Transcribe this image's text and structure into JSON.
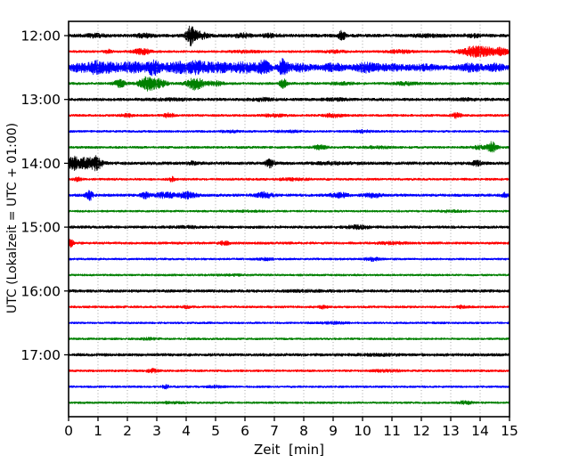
{
  "figure": {
    "background": "#ffffff"
  },
  "chart_data": {
    "type": "line",
    "subtype": "seismogram_drum_plot",
    "title": "",
    "xlabel": "Zeit  [min]",
    "ylabel": "UTC (Lokalzeit = UTC + 01:00)",
    "xlim": [
      0,
      15
    ],
    "x_ticks": [
      "0",
      "1",
      "2",
      "3",
      "4",
      "5",
      "6",
      "7",
      "8",
      "9",
      "10",
      "11",
      "12",
      "13",
      "14",
      "15"
    ],
    "y_tick_labels": [
      "12:00",
      "13:00",
      "14:00",
      "15:00",
      "16:00",
      "17:00"
    ],
    "minutes_per_line": 15,
    "grid": "vertical dotted gridline at every minute",
    "legend": "none",
    "colors": {
      "black": "#000000",
      "red": "#ff0000",
      "blue": "#0000ff",
      "green": "#008000",
      "grid": "#9a9a9a",
      "frame": "#000000",
      "text": "#000000"
    },
    "event_format": "[t_minutes, sigma_minutes, amplitude_px]",
    "traces": [
      {
        "start_utc": "12:00",
        "color": "black",
        "base_amp": 2.1,
        "events": [
          [
            0.9,
            0.25,
            1.2
          ],
          [
            2.6,
            0.2,
            1.5
          ],
          [
            4.15,
            0.1,
            8
          ],
          [
            4.4,
            0.25,
            3.5
          ],
          [
            5.9,
            0.25,
            1.8
          ],
          [
            6.9,
            0.2,
            1.5
          ],
          [
            9.3,
            0.07,
            6
          ],
          [
            12.2,
            0.3,
            1.0
          ],
          [
            13.8,
            0.2,
            1.2
          ]
        ]
      },
      {
        "start_utc": "12:15",
        "color": "red",
        "base_amp": 1.6,
        "events": [
          [
            1.35,
            0.08,
            1.8
          ],
          [
            2.5,
            0.2,
            3
          ],
          [
            6.0,
            0.3,
            1
          ],
          [
            9.0,
            0.3,
            1
          ],
          [
            11.3,
            0.3,
            1.5
          ],
          [
            13.6,
            0.25,
            3
          ],
          [
            14.1,
            0.3,
            5
          ],
          [
            14.7,
            0.2,
            3
          ]
        ]
      },
      {
        "start_utc": "12:30",
        "color": "blue",
        "base_amp": 3.0,
        "events": [
          [
            0.35,
            0.2,
            3
          ],
          [
            0.9,
            0.2,
            5
          ],
          [
            1.4,
            0.3,
            3.5
          ],
          [
            2.2,
            0.3,
            4.5
          ],
          [
            2.9,
            0.15,
            6.5
          ],
          [
            3.6,
            0.3,
            3.5
          ],
          [
            4.35,
            0.4,
            5.5
          ],
          [
            5.2,
            0.25,
            3.5
          ],
          [
            6.0,
            0.3,
            4.5
          ],
          [
            6.65,
            0.15,
            6
          ],
          [
            7.3,
            0.1,
            9
          ],
          [
            7.9,
            0.25,
            3
          ],
          [
            9.0,
            0.25,
            3
          ],
          [
            10.15,
            0.25,
            4.5
          ],
          [
            11.0,
            0.3,
            2.2
          ],
          [
            12.1,
            0.3,
            1.8
          ],
          [
            13.7,
            0.25,
            3.2
          ],
          [
            14.5,
            0.2,
            2.8
          ]
        ]
      },
      {
        "start_utc": "12:45",
        "color": "green",
        "base_amp": 1.7,
        "events": [
          [
            1.75,
            0.15,
            3.5
          ],
          [
            2.7,
            0.2,
            7.5
          ],
          [
            3.15,
            0.15,
            3.5
          ],
          [
            4.3,
            0.2,
            6.5
          ],
          [
            5.0,
            0.2,
            2.2
          ],
          [
            7.3,
            0.08,
            5
          ],
          [
            9.3,
            0.3,
            1
          ],
          [
            11.5,
            0.3,
            1.2
          ]
        ]
      },
      {
        "start_utc": "13:00",
        "color": "black",
        "base_amp": 1.9,
        "events": [
          [
            3.5,
            0.4,
            0.8
          ],
          [
            6.6,
            0.3,
            1
          ],
          [
            9.1,
            0.3,
            0.8
          ],
          [
            13.5,
            0.3,
            0.8
          ]
        ]
      },
      {
        "start_utc": "13:15",
        "color": "red",
        "base_amp": 1.6,
        "events": [
          [
            2.0,
            0.15,
            1.4
          ],
          [
            3.4,
            0.12,
            2.2
          ],
          [
            7.0,
            0.3,
            1
          ],
          [
            9.0,
            0.2,
            1.8
          ],
          [
            13.2,
            0.12,
            2.4
          ]
        ]
      },
      {
        "start_utc": "13:30",
        "color": "blue",
        "base_amp": 1.5,
        "events": [
          [
            5.5,
            0.2,
            1
          ],
          [
            7.5,
            0.3,
            0.8
          ],
          [
            10.0,
            0.2,
            1.2
          ]
        ]
      },
      {
        "start_utc": "13:45",
        "color": "green",
        "base_amp": 1.6,
        "events": [
          [
            8.55,
            0.15,
            2.4
          ],
          [
            10.5,
            0.3,
            1
          ],
          [
            13.95,
            0.12,
            1.8
          ],
          [
            14.4,
            0.12,
            5.5
          ]
        ]
      },
      {
        "start_utc": "14:00",
        "color": "black",
        "base_amp": 2.0,
        "events": [
          [
            0.15,
            0.1,
            6
          ],
          [
            0.55,
            0.3,
            5.5
          ],
          [
            0.95,
            0.12,
            5
          ],
          [
            4.2,
            0.1,
            1.6
          ],
          [
            6.85,
            0.1,
            4
          ],
          [
            9.0,
            0.4,
            0.8
          ],
          [
            13.9,
            0.12,
            2.2
          ]
        ]
      },
      {
        "start_utc": "14:15",
        "color": "red",
        "base_amp": 1.55,
        "events": [
          [
            0.3,
            0.1,
            1.8
          ],
          [
            3.5,
            0.08,
            2.2
          ],
          [
            7.6,
            0.4,
            0.9
          ]
        ]
      },
      {
        "start_utc": "14:30",
        "color": "blue",
        "base_amp": 1.8,
        "events": [
          [
            0.7,
            0.08,
            5.5
          ],
          [
            2.6,
            0.1,
            2.8
          ],
          [
            3.3,
            0.25,
            2.6
          ],
          [
            4.05,
            0.2,
            3.2
          ],
          [
            6.65,
            0.2,
            2.8
          ],
          [
            9.2,
            0.2,
            2.4
          ],
          [
            10.35,
            0.2,
            2
          ],
          [
            14.85,
            0.1,
            2
          ]
        ]
      },
      {
        "start_utc": "14:45",
        "color": "green",
        "base_amp": 1.45,
        "events": [
          [
            6.0,
            0.4,
            0.5
          ],
          [
            13.0,
            0.3,
            0.8
          ]
        ]
      },
      {
        "start_utc": "15:00",
        "color": "black",
        "base_amp": 1.8,
        "events": [
          [
            4.0,
            0.3,
            0.8
          ],
          [
            9.85,
            0.25,
            1.6
          ]
        ]
      },
      {
        "start_utc": "15:15",
        "color": "red",
        "base_amp": 1.65,
        "events": [
          [
            0.05,
            0.07,
            5
          ],
          [
            5.3,
            0.12,
            1.8
          ],
          [
            11.0,
            0.3,
            1
          ]
        ]
      },
      {
        "start_utc": "15:30",
        "color": "blue",
        "base_amp": 1.45,
        "events": [
          [
            6.7,
            0.2,
            1
          ],
          [
            10.35,
            0.18,
            1.8
          ]
        ]
      },
      {
        "start_utc": "15:45",
        "color": "green",
        "base_amp": 1.45,
        "events": [
          [
            5.5,
            0.4,
            0.5
          ]
        ]
      },
      {
        "start_utc": "16:00",
        "color": "black",
        "base_amp": 1.9,
        "events": [
          [
            8.0,
            0.5,
            0.5
          ]
        ]
      },
      {
        "start_utc": "16:15",
        "color": "red",
        "base_amp": 1.55,
        "events": [
          [
            4.0,
            0.1,
            1.3
          ],
          [
            8.65,
            0.1,
            1.4
          ],
          [
            13.4,
            0.12,
            1.4
          ]
        ]
      },
      {
        "start_utc": "16:30",
        "color": "blue",
        "base_amp": 1.45,
        "events": [
          [
            9.0,
            0.3,
            0.8
          ]
        ]
      },
      {
        "start_utc": "16:45",
        "color": "green",
        "base_amp": 1.45,
        "events": [
          [
            2.7,
            0.2,
            0.8
          ]
        ]
      },
      {
        "start_utc": "17:00",
        "color": "black",
        "base_amp": 1.9,
        "events": [
          [
            10.5,
            0.4,
            0.7
          ]
        ]
      },
      {
        "start_utc": "17:15",
        "color": "red",
        "base_amp": 1.55,
        "events": [
          [
            2.85,
            0.12,
            2
          ],
          [
            10.8,
            0.3,
            1
          ]
        ]
      },
      {
        "start_utc": "17:30",
        "color": "blue",
        "base_amp": 1.45,
        "events": [
          [
            3.3,
            0.08,
            1.8
          ],
          [
            5.0,
            0.2,
            1
          ]
        ]
      },
      {
        "start_utc": "17:45",
        "color": "green",
        "base_amp": 1.45,
        "events": [
          [
            3.5,
            0.3,
            0.7
          ],
          [
            13.5,
            0.18,
            1.6
          ]
        ]
      }
    ]
  }
}
